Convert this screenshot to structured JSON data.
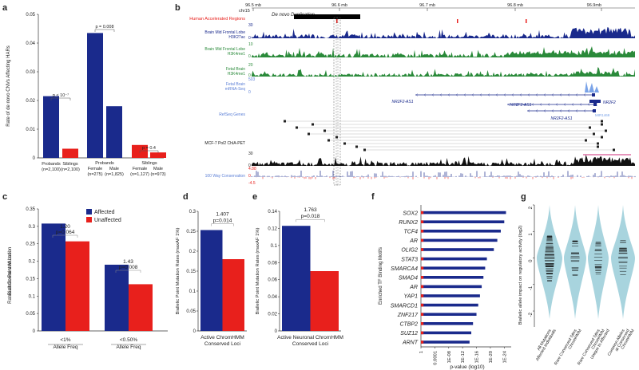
{
  "panel_labels": {
    "a": "a",
    "b": "b",
    "c": "c",
    "d": "d",
    "e": "e",
    "f": "f",
    "g": "g"
  },
  "colors": {
    "blue": "#1a2a8c",
    "red": "#e8201c",
    "green": "#2a8a3a",
    "black": "#111111",
    "teal": "#9fcfda",
    "pink": "#cc2b7a",
    "gray": "#888888"
  },
  "chart_data": [
    {
      "panel": "a",
      "type": "bar",
      "ylabel": "Rate of de novo CNVs Affecting HARs",
      "ylim": [
        0,
        0.05
      ],
      "yticks": [
        "0",
        "0.01",
        "0.02",
        "0.03",
        "0.04",
        "0.05"
      ],
      "bars": [
        {
          "group": "Probands",
          "n": "(n=2,100)",
          "value": 0.0215,
          "color": "blue"
        },
        {
          "group": "Siblings",
          "n": "(n=2,100)",
          "value": 0.0032,
          "color": "red"
        },
        {
          "group": "Female",
          "n": "(n=275)",
          "value": 0.0435,
          "color": "blue"
        },
        {
          "group": "Male",
          "n": "(n=1,825)",
          "value": 0.018,
          "color": "blue"
        },
        {
          "group": "Female",
          "n": "(n=1,127)",
          "value": 0.0045,
          "color": "red"
        },
        {
          "group": "Male",
          "n": "(n=973)",
          "value": 0.0019,
          "color": "red"
        }
      ],
      "group_headers": [
        "Probands",
        "Siblings"
      ],
      "pvalues": [
        "p < 10⁻⁷",
        "p = 0.008",
        "p = 0.4"
      ]
    },
    {
      "panel": "c",
      "type": "bar",
      "ylabel": "Biallelic Point Mutation\nRates at Conserved Loci",
      "ylim": [
        0,
        0.35
      ],
      "yticks": [
        "0",
        "0.05",
        "0.1",
        "0.15",
        "0.2",
        "0.25",
        "0.3",
        "0.35"
      ],
      "categories": [
        "<1%\nAllele Freq",
        "<0.50%\nAllele Freq"
      ],
      "series": [
        {
          "name": "Affected",
          "color": "blue",
          "values": [
            0.308,
            0.19
          ]
        },
        {
          "name": "Unaffected",
          "color": "red",
          "values": [
            0.257,
            0.134
          ]
        }
      ],
      "ratios": [
        "1.20",
        "1.43"
      ],
      "pvalues": [
        "p=0.064",
        "p=0.008"
      ]
    },
    {
      "panel": "d",
      "type": "bar",
      "ylabel": "Biallelic Point Mutation Rates (maxAF 1%)",
      "ylim": [
        0,
        0.3
      ],
      "yticks": [
        "0",
        "0.05",
        "0.1",
        "0.15",
        "0.2",
        "0.25",
        "0.3"
      ],
      "xlabel": "Active ChromHMM\nConserved Loci",
      "values": [
        0.253,
        0.18
      ],
      "ratio": "1.407",
      "pvalue": "p=0.014"
    },
    {
      "panel": "e",
      "type": "bar",
      "ylabel": "Biallelic Point Mutation Rates (maxAF 1%)",
      "ylim": [
        0,
        0.14
      ],
      "yticks": [
        "0",
        "0.02",
        "0.04",
        "0.06",
        "0.08",
        "0.1",
        "0.12",
        "0.14"
      ],
      "xlabel": "Active Neuronal ChromHMM\nConserved Loci",
      "values": [
        0.123,
        0.07
      ],
      "ratio": "1.763",
      "pvalue": "p=0.018"
    },
    {
      "panel": "f",
      "type": "bar",
      "ylabel": "Enriched TF Binding Motifs",
      "xlabel": "p-value (log10)",
      "xticks": [
        "1",
        "0.0001",
        "1E-08",
        "1E-12",
        "1E-16",
        "1E-20",
        "1E-24"
      ],
      "motifs": [
        "SOX2",
        "RUNX2",
        "TCF4",
        "AR",
        "OLIG2",
        "STAT3",
        "SMARCA4",
        "SMAD4",
        "AR",
        "YAP1",
        "SMARCD1",
        "ZNF217",
        "CTBP2",
        "SUZ12",
        "ARNT"
      ],
      "neglog10_p": [
        24.5,
        24.0,
        23.0,
        22.0,
        21.0,
        19.0,
        18.5,
        18.0,
        17.5,
        17.0,
        16.5,
        16.0,
        15.0,
        14.5,
        14.0
      ]
    },
    {
      "panel": "g",
      "type": "violin",
      "ylabel": "Biallelic allele impact on regulatory activity (log2)",
      "yticks": [
        "2",
        "1",
        "0",
        "-1",
        "-2"
      ],
      "categories": [
        "All Mutations\nAffected Individuals",
        "Rare Conserved Sites\nChromHMM",
        "Rare Conserved Sites\nChromHMM\nUnique to Affected",
        "Common Alleles\nat Conserved\nChromHMM"
      ]
    }
  ],
  "genome_browser": {
    "chrom": "chr15",
    "positions": [
      "96.5 mb",
      "96.6 mb",
      "96.7 mb",
      "96.8 mb",
      "96.9mb"
    ],
    "top_tracks": [
      "Human Accelerated Regions",
      "De novo Duplication"
    ],
    "tracks": [
      {
        "label": "Brain Mid Frontal Lobe\nH3K27ac",
        "scale": "30",
        "zero": "0",
        "color": "blue"
      },
      {
        "label": "Brain Mid Frontal Lobe\nH3K4me1",
        "scale": "10",
        "zero": "0",
        "color": "green"
      },
      {
        "label": "Fetal Brain\nH3K4me1",
        "scale": "20",
        "zero": "0",
        "color": "green"
      },
      {
        "label": "Fetal Brain\nmRNA-Seq",
        "scale": "503",
        "zero": "0",
        "color": "lightblue"
      },
      {
        "label": "RefSeq Genes",
        "scale": "",
        "zero": "",
        "color": "blue"
      },
      {
        "label": "MCF-7 Pol2 ChIA-PET",
        "scale": "",
        "zero": "",
        "color": "black"
      },
      {
        "label": "",
        "scale": "30",
        "zero": "0",
        "color": "black"
      },
      {
        "label": "100 Way Conservation",
        "scale": "4.88",
        "zero": "0",
        "color": "blue"
      }
    ],
    "bottom_scale": "-4.5",
    "genes": [
      "NR2F2-AS1",
      "NR2F2-AS1",
      "NR2F2-AS1",
      "NR2F2",
      "MIR1469"
    ]
  },
  "legend_c": {
    "affected": "Affected",
    "unaffected": "Unaffected"
  }
}
